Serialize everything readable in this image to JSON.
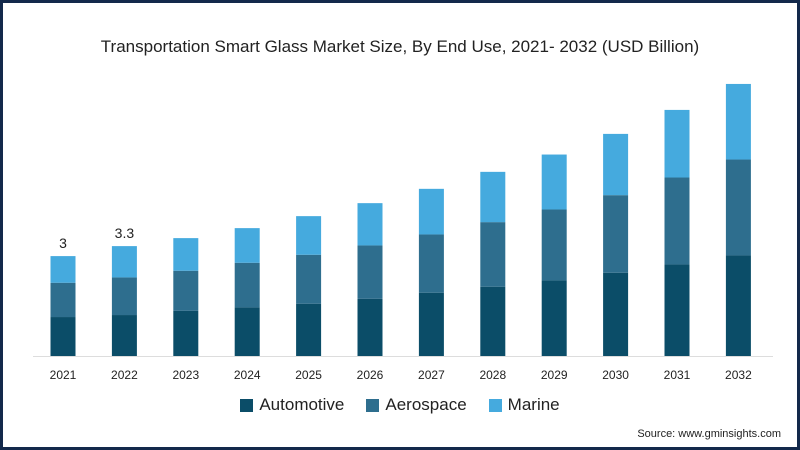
{
  "chart_data": {
    "type": "bar",
    "stacked": true,
    "title": "Transportation Smart Glass Market Size, By End Use, 2021- 2032 (USD Billion)",
    "xlabel": "",
    "ylabel": "",
    "ylim": [
      0,
      9
    ],
    "grid": false,
    "legend_position": "bottom",
    "categories": [
      "2021",
      "2022",
      "2023",
      "2024",
      "2025",
      "2026",
      "2027",
      "2028",
      "2029",
      "2030",
      "2031",
      "2032"
    ],
    "series": [
      {
        "name": "Automotive",
        "color": "#0b4d68",
        "values": [
          1.17,
          1.23,
          1.36,
          1.46,
          1.57,
          1.72,
          1.9,
          2.08,
          2.27,
          2.5,
          2.75,
          3.02
        ]
      },
      {
        "name": "Aerospace",
        "color": "#2e6e8e",
        "values": [
          1.03,
          1.13,
          1.2,
          1.34,
          1.47,
          1.6,
          1.75,
          1.94,
          2.13,
          2.33,
          2.61,
          2.88
        ]
      },
      {
        "name": "Marine",
        "color": "#45aade",
        "values": [
          0.8,
          0.94,
          0.98,
          1.04,
          1.16,
          1.27,
          1.37,
          1.51,
          1.65,
          1.84,
          2.03,
          2.27
        ]
      }
    ],
    "data_labels": [
      {
        "category": "2021",
        "text": "3"
      },
      {
        "category": "2022",
        "text": "3.3"
      }
    ]
  },
  "source": "Source: www.gminsights.com"
}
